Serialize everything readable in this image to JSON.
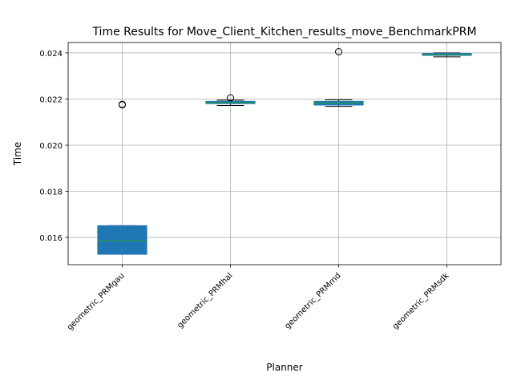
{
  "chart_data": {
    "type": "box",
    "title": "Time Results for Move_Client_Kitchen_results_move_BenchmarkPRM",
    "xlabel": "Planner",
    "ylabel": "Time",
    "ylim": [
      0.01482,
      0.02445
    ],
    "yticks": [
      0.016,
      0.018,
      0.02,
      0.022,
      0.024
    ],
    "ytick_labels": [
      "0.016",
      "0.018",
      "0.020",
      "0.022",
      "0.024"
    ],
    "grid": true,
    "categories": [
      "geometric_PRMgau",
      "geometric_PRMhal",
      "geometric_PRMrnd",
      "geometric_PRMsdk"
    ],
    "boxes": [
      {
        "whislo": 0.01527,
        "q1": 0.01527,
        "med": 0.01586,
        "q3": 0.01651,
        "whishi": 0.01651,
        "fliers": [
          0.02177,
          0.02175
        ]
      },
      {
        "whislo": 0.02172,
        "q1": 0.0218,
        "med": 0.02184,
        "q3": 0.0219,
        "whishi": 0.02195,
        "fliers": [
          0.02205
        ]
      },
      {
        "whislo": 0.02168,
        "q1": 0.02174,
        "med": 0.02183,
        "q3": 0.0219,
        "whishi": 0.02197,
        "fliers": [
          0.02405
        ]
      },
      {
        "whislo": 0.02383,
        "q1": 0.0239,
        "med": 0.02393,
        "q3": 0.02397,
        "whishi": 0.024,
        "fliers": []
      }
    ],
    "box_color": "#1f77b4",
    "median_color": "#2ca02c",
    "grid_color": "#b0b0b0"
  }
}
